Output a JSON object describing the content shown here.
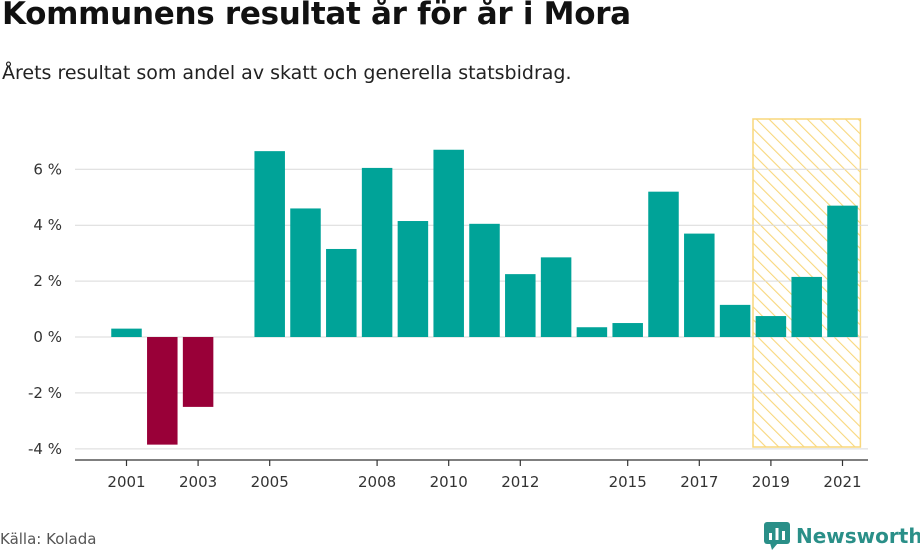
{
  "header": {
    "title": "Kommunens resultat år för år i Mora",
    "subtitle": "Årets resultat som andel av skatt och generella statsbidrag."
  },
  "footer": {
    "source": "Källa: Kolada",
    "brand": "Newsworthy",
    "brand_icon": "newsworthy-logo-icon"
  },
  "colors": {
    "positive": "#00a398",
    "negative": "#990038",
    "highlight": "#f8d77c",
    "grid": "#d9d9d9"
  },
  "chart_data": {
    "type": "bar",
    "categories": [
      "2001",
      "2002",
      "2003",
      "2004",
      "2005",
      "2006",
      "2007",
      "2008",
      "2009",
      "2010",
      "2011",
      "2012",
      "2013",
      "2014",
      "2015",
      "2016",
      "2017",
      "2018",
      "2019",
      "2020",
      "2021"
    ],
    "series": [
      {
        "values": [
          0.3,
          -3.85,
          -2.5,
          null,
          6.65,
          4.6,
          3.15,
          6.05,
          4.15,
          6.7,
          4.05,
          2.25,
          2.85,
          0.35,
          0.5,
          5.2,
          3.7,
          1.15,
          0.75,
          2.15,
          4.7
        ]
      }
    ],
    "title": "Kommunens resultat år för år i Mora",
    "subtitle": "Årets resultat som andel av skatt och generella statsbidrag.",
    "xlabel": "",
    "ylabel": "",
    "ylim": [
      -4.4,
      7.8
    ],
    "yticks": [
      -4,
      -2,
      0,
      2,
      4,
      6
    ],
    "ytick_labels": [
      "-4 %",
      "-2 %",
      "0 %",
      "2 %",
      "4 %",
      "6 %"
    ],
    "xtick_labels": [
      "2001",
      "2003",
      "2005",
      "2008",
      "2010",
      "2012",
      "2015",
      "2017",
      "2019",
      "2021"
    ],
    "highlight_range": [
      "2019",
      "2021"
    ],
    "grid": true,
    "legend": "none"
  }
}
